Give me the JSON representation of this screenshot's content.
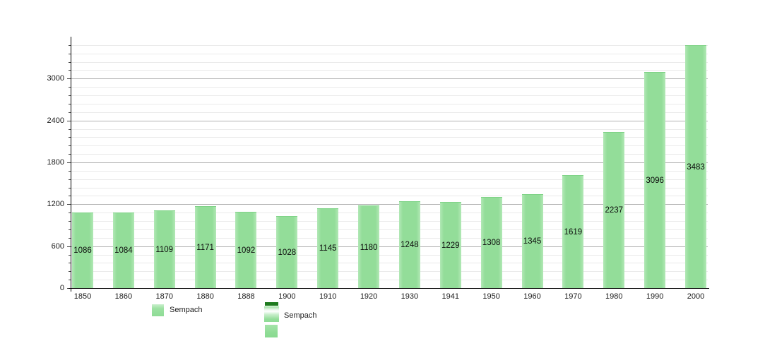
{
  "chart_data": {
    "type": "bar",
    "title": "",
    "xlabel": "",
    "ylabel": "",
    "categories": [
      "1850",
      "1860",
      "1870",
      "1880",
      "1888",
      "1900",
      "1910",
      "1920",
      "1930",
      "1941",
      "1950",
      "1960",
      "1970",
      "1980",
      "1990",
      "2000"
    ],
    "values": [
      1086,
      1084,
      1109,
      1171,
      1092,
      1028,
      1145,
      1180,
      1248,
      1229,
      1308,
      1345,
      1619,
      2237,
      3096,
      3483
    ],
    "value_labels": [
      "1086",
      "1084",
      "1109",
      "1171",
      "1092",
      "1028",
      "1145",
      "1180",
      "1248",
      "1229",
      "1308",
      "1345",
      "1619",
      "2237",
      "3096",
      "3483"
    ],
    "ylim": [
      0,
      3600
    ],
    "yticks": [
      0,
      600,
      1200,
      1800,
      2400,
      3000
    ],
    "ytick_labels": [
      "0",
      "600",
      "1200",
      "1800",
      "2400",
      "3000"
    ],
    "minor_grid_step": 120,
    "major_grid_step": 600,
    "grid": true,
    "legend_position": "bottom",
    "legend": [
      {
        "label": "Sempach"
      },
      {
        "label": "Sempach"
      }
    ]
  },
  "legend": {
    "first_label": "Sempach",
    "second_label": "Sempach"
  },
  "colors": {
    "bar_fill": "#93dd99",
    "bar_fill_light": "#b2e8b6",
    "bar_edge": "#7fd387",
    "legend_dark_strip": "#1e7b1e",
    "grid_major": "#b3b3b3",
    "grid_minor": "#eaeaea",
    "axis": "#000000",
    "text": "#1a1a1a",
    "background": "#ffffff"
  }
}
